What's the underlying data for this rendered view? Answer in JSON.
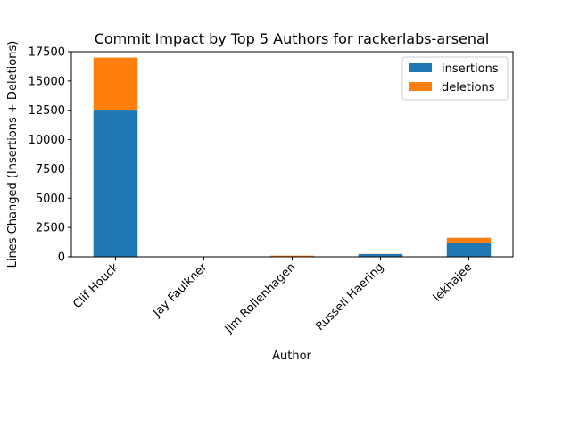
{
  "chart_data": {
    "type": "bar",
    "stacked": true,
    "title": "Commit Impact by Top 5 Authors for rackerlabs-arsenal",
    "xlabel": "Author",
    "ylabel": "Lines Changed (Insertions + Deletions)",
    "categories": [
      "Clif Houck",
      "Jay Faulkner",
      "Jim Rollenhagen",
      "Russell Haering",
      "lekhajee"
    ],
    "series": [
      {
        "name": "insertions",
        "color": "#1f77b4",
        "values": [
          12550,
          10,
          40,
          230,
          1200
        ]
      },
      {
        "name": "deletions",
        "color": "#ff7f0e",
        "values": [
          4450,
          5,
          60,
          20,
          420
        ]
      }
    ],
    "ylim": [
      0,
      17500
    ],
    "yticks": [
      0,
      2500,
      5000,
      7500,
      10000,
      12500,
      15000,
      17500
    ],
    "ytick_labels": [
      "0",
      "2500",
      "5000",
      "7500",
      "10000",
      "12500",
      "15000",
      "17500"
    ],
    "grid": false,
    "legend_position": "top-right"
  }
}
